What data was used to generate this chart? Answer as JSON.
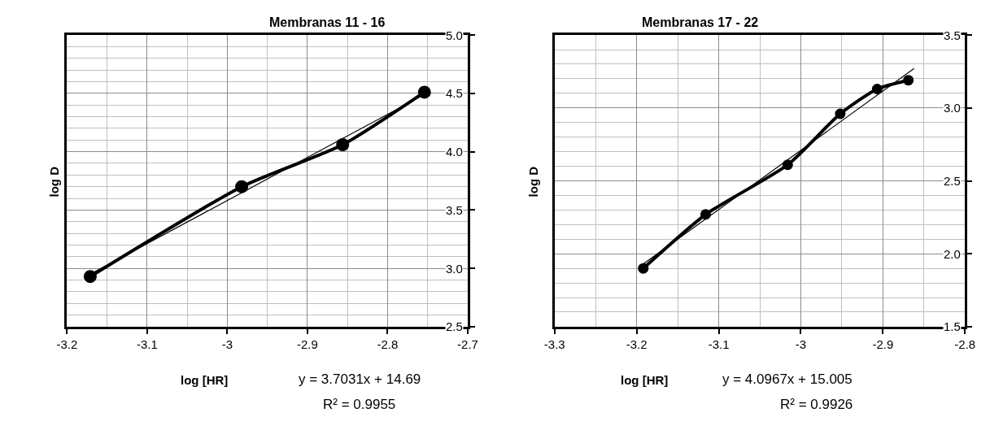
{
  "chart_data": [
    {
      "type": "line",
      "title": "Membranas 11 - 16",
      "xlabel": "log [HR]",
      "ylabel": "log D",
      "xlim": [
        -3.2,
        -2.7
      ],
      "xticks": [
        -3.2,
        -3.1,
        -3,
        -2.9,
        -2.8,
        -2.7
      ],
      "ylim": [
        2.5,
        5.0
      ],
      "yticks": [
        {
          "value": 2.5,
          "label": "2.5"
        },
        {
          "value": 3.0,
          "label": "3.0"
        },
        {
          "value": 3.5,
          "label": "3.5"
        },
        {
          "value": 4.0,
          "label": "4.0"
        },
        {
          "value": 4.5,
          "label": "4.5"
        },
        {
          "value": 5.0,
          "label": "5.0"
        }
      ],
      "grid": true,
      "series": [
        {
          "color": "#000000",
          "marker": "circle",
          "x": [
            -3.171,
            -2.982,
            -2.856,
            -2.754
          ],
          "values": [
            2.93,
            3.7,
            4.06,
            4.51
          ]
        },
        {
          "color": "#000000",
          "marker": "none",
          "x": [
            -3.171,
            -2.754
          ],
          "values": [
            2.95,
            4.49
          ]
        }
      ],
      "annotations": [
        "y = 3.7031x + 14.69",
        "R² = 0.9955"
      ]
    },
    {
      "type": "line",
      "title": "Membranas 17 - 22",
      "xlabel": "log [HR]",
      "ylabel": "log D",
      "xlim": [
        -3.3,
        -2.8
      ],
      "xticks": [
        -3.3,
        -3.2,
        -3.1,
        -3,
        -2.9,
        -2.8
      ],
      "ylim": [
        1.5,
        3.5
      ],
      "yticks": [
        {
          "value": 1.5,
          "label": "1.5"
        },
        {
          "value": 2.0,
          "label": "2.0"
        },
        {
          "value": 2.5,
          "label": "2.5"
        },
        {
          "value": 3.0,
          "label": "3.0"
        },
        {
          "value": 3.5,
          "label": "3.5"
        }
      ],
      "grid": true,
      "series": [
        {
          "color": "#000000",
          "marker": "circle",
          "x": [
            -3.192,
            -3.116,
            -3.016,
            -2.952,
            -2.907,
            -2.869
          ],
          "values": [
            1.9,
            2.27,
            2.61,
            2.96,
            3.13,
            3.19
          ]
        },
        {
          "color": "#000000",
          "marker": "none",
          "x": [
            -3.192,
            -2.862
          ],
          "values": [
            1.93,
            3.27
          ]
        }
      ],
      "annotations": [
        "y = 4.0967x + 15.005",
        "R² = 0.9926"
      ]
    }
  ]
}
